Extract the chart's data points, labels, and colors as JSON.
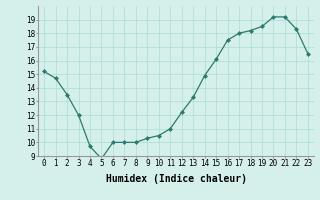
{
  "x": [
    0,
    1,
    2,
    3,
    4,
    5,
    6,
    7,
    8,
    9,
    10,
    11,
    12,
    13,
    14,
    15,
    16,
    17,
    18,
    19,
    20,
    21,
    22,
    23
  ],
  "y": [
    15.2,
    14.7,
    13.5,
    12.0,
    9.7,
    8.8,
    10.0,
    10.0,
    10.0,
    10.3,
    10.5,
    11.0,
    12.2,
    13.3,
    14.9,
    16.1,
    17.5,
    18.0,
    18.2,
    18.5,
    19.2,
    19.2,
    18.3,
    16.5
  ],
  "xlabel": "Humidex (Indice chaleur)",
  "ylim": [
    9,
    20
  ],
  "xlim": [
    -0.5,
    23.5
  ],
  "yticks": [
    9,
    10,
    11,
    12,
    13,
    14,
    15,
    16,
    17,
    18,
    19
  ],
  "xticks": [
    0,
    1,
    2,
    3,
    4,
    5,
    6,
    7,
    8,
    9,
    10,
    11,
    12,
    13,
    14,
    15,
    16,
    17,
    18,
    19,
    20,
    21,
    22,
    23
  ],
  "line_color": "#2d7a6e",
  "marker_color": "#2d7a6e",
  "bg_color": "#d5f0eb",
  "grid_color": "#aaddd6",
  "tick_label_fontsize": 5.5,
  "xlabel_fontsize": 7.0
}
